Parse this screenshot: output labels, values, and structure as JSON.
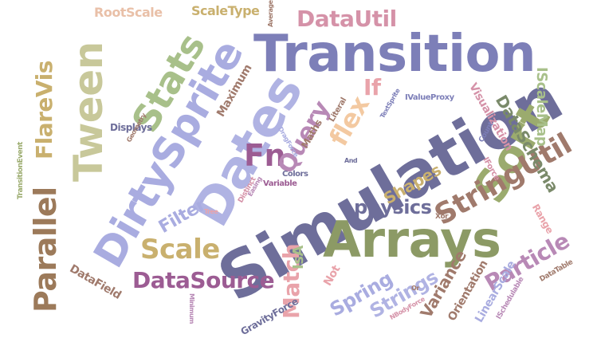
{
  "colors": {
    "slate": "#6e6e9a",
    "indigo": "#7d7fb8",
    "periwinkle": "#a9ace0",
    "green": "#9bab6e",
    "tan": "#c9b06e",
    "olive": "#8c8a5c",
    "brown": "#a07a6c",
    "pink": "#e9a3aa",
    "rose": "#d592a8",
    "mauve": "#b889b6",
    "plum": "#9c5c93",
    "lavender": "#b0b3e3",
    "peach": "#f3c9a1",
    "sage": "#a8c08a",
    "khaki": "#cbbd86"
  },
  "words": [
    {
      "text": "Simulation",
      "color": "#6e6e9a"
    },
    {
      "text": "Transition",
      "color": "#7d7fb8"
    },
    {
      "text": "Dates",
      "color": "#b0b3e3"
    },
    {
      "text": "Arrays",
      "color": "#8c9a65"
    },
    {
      "text": "DirtySprite",
      "color": "#a9ace0"
    },
    {
      "text": "Sort",
      "color": "#9bab6e"
    },
    {
      "text": "Tween",
      "color": "#c8c89a"
    },
    {
      "text": "Stats",
      "color": "#a8c08a"
    },
    {
      "text": "StringUtil",
      "color": "#a07a6c"
    },
    {
      "text": "Parallel",
      "color": "#9c7a5a"
    },
    {
      "text": "DataSource",
      "color": "#9c5c93"
    },
    {
      "text": "DataUtil",
      "color": "#d592a8"
    },
    {
      "text": "Particle",
      "color": "#b889b6"
    },
    {
      "text": "Scale",
      "color": "#c9b06e"
    },
    {
      "text": "Fn",
      "color": "#9c5c93"
    },
    {
      "text": "Query",
      "color": "#b889b6"
    },
    {
      "text": "FlareVis",
      "color": "#c9b06e"
    },
    {
      "text": "Match",
      "color": "#e9a3aa"
    },
    {
      "text": "physics",
      "color": "#6e6e9a"
    },
    {
      "text": "Strings",
      "color": "#b0b3e3"
    },
    {
      "text": "Spring",
      "color": "#a9ace0"
    },
    {
      "text": "flex",
      "color": "#f3c9a1"
    },
    {
      "text": "Filter",
      "color": "#a9ace0"
    },
    {
      "text": "Variance",
      "color": "#a07a6c"
    },
    {
      "text": "Shapes",
      "color": "#c9b06e"
    },
    {
      "text": "DataSchema",
      "color": "#7a8a6a"
    },
    {
      "text": "IScaleMap",
      "color": "#a8c08a"
    },
    {
      "text": "ScaleType",
      "color": "#c9b06e"
    },
    {
      "text": "RootScale",
      "color": "#e9c0a8"
    },
    {
      "text": "If",
      "color": "#e9a3aa"
    },
    {
      "text": "Maximum",
      "color": "#a07a6c"
    },
    {
      "text": "Orientation",
      "color": "#a07a6c"
    },
    {
      "text": "LinearScale",
      "color": "#a9ace0"
    },
    {
      "text": "DataField",
      "color": "#a07a6c"
    },
    {
      "text": "Visualization",
      "color": "#d592a8"
    },
    {
      "text": "Range",
      "color": "#e9a3aa"
    },
    {
      "text": "IsA",
      "color": "#a8c08a"
    },
    {
      "text": "Not",
      "color": "#e9a3aa"
    },
    {
      "text": "GravityForce",
      "color": "#6e6e9a"
    },
    {
      "text": "Displays",
      "color": "#6e6e9a"
    },
    {
      "text": "TransitionEvent",
      "color": "#9bab6e"
    },
    {
      "text": "Variable",
      "color": "#9c5c93"
    },
    {
      "text": "Maths",
      "color": "#a07a6c"
    },
    {
      "text": "Literal",
      "color": "#a07a6c"
    },
    {
      "text": "Colors",
      "color": "#6e6e9a"
    },
    {
      "text": "IValueProxy",
      "color": "#7d7fb8"
    },
    {
      "text": "TextSprite",
      "color": "#7d7fb8"
    },
    {
      "text": "Count",
      "color": "#7d7fb8"
    },
    {
      "text": "IForce",
      "color": "#d592a8"
    },
    {
      "text": "Distinct",
      "color": "#d592a8"
    },
    {
      "text": "DataTable",
      "color": "#a07a6c"
    },
    {
      "text": "ISchedulable",
      "color": "#b889b6"
    },
    {
      "text": "NBodyForce",
      "color": "#d592a8"
    },
    {
      "text": "Xor",
      "color": "#a07a6c"
    },
    {
      "text": "Or",
      "color": "#a07a6c"
    },
    {
      "text": "Average",
      "color": "#a07a6c"
    },
    {
      "text": "Minimum",
      "color": "#b889b6"
    },
    {
      "text": "DragForce",
      "color": "#a9ace0"
    },
    {
      "text": "Geometry",
      "color": "#a07a6c"
    },
    {
      "text": "Easing",
      "color": "#b889b6"
    },
    {
      "text": "And",
      "color": "#6e6e9a"
    },
    {
      "text": "Tree",
      "color": "#e9a3aa"
    }
  ]
}
